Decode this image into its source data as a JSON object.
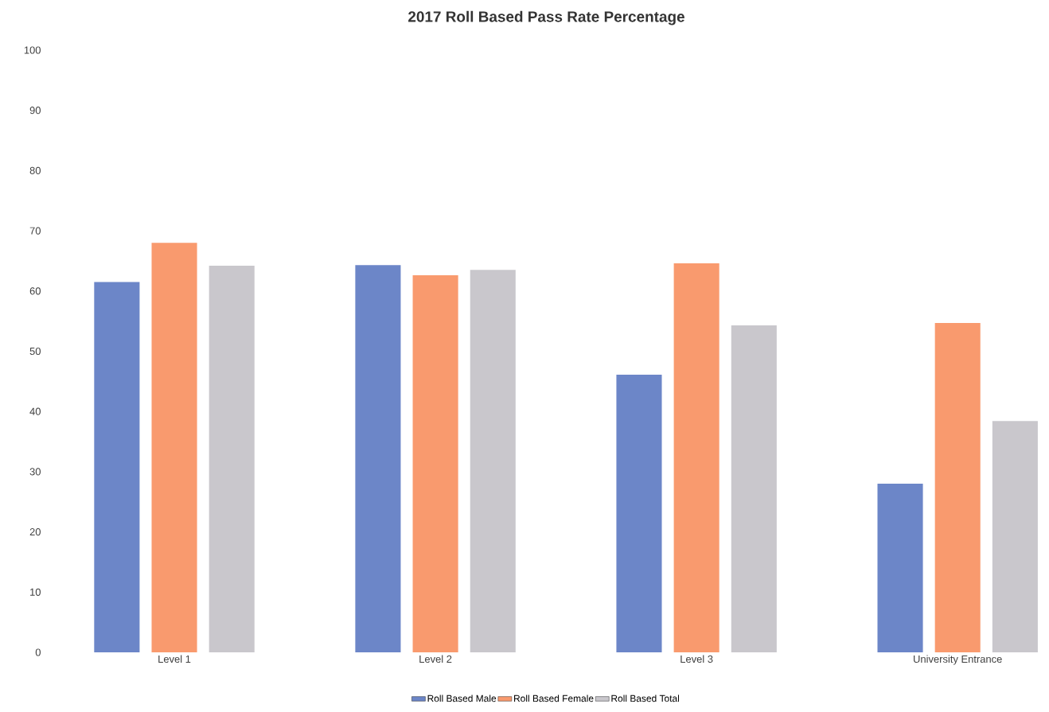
{
  "chart_data": {
    "type": "bar",
    "title": "2017 Roll Based Pass Rate Percentage",
    "categories": [
      "Level 1",
      "Level 2",
      "Level 3",
      "University Entrance"
    ],
    "series": [
      {
        "name": "Roll Based Male",
        "color": "#6c86c8",
        "values": [
          61.5,
          64.3,
          46.1,
          28.0
        ]
      },
      {
        "name": "Roll Based Female",
        "color": "#f99a6e",
        "values": [
          68.0,
          62.6,
          64.6,
          54.7
        ]
      },
      {
        "name": "Roll Based Total",
        "color": "#c9c7cc",
        "values": [
          64.2,
          63.5,
          54.3,
          38.4
        ]
      }
    ],
    "ylim": [
      0,
      100
    ],
    "yticks": [
      0,
      10,
      20,
      30,
      40,
      50,
      60,
      70,
      80,
      90,
      100
    ],
    "grid": false,
    "legend": "bottom"
  }
}
